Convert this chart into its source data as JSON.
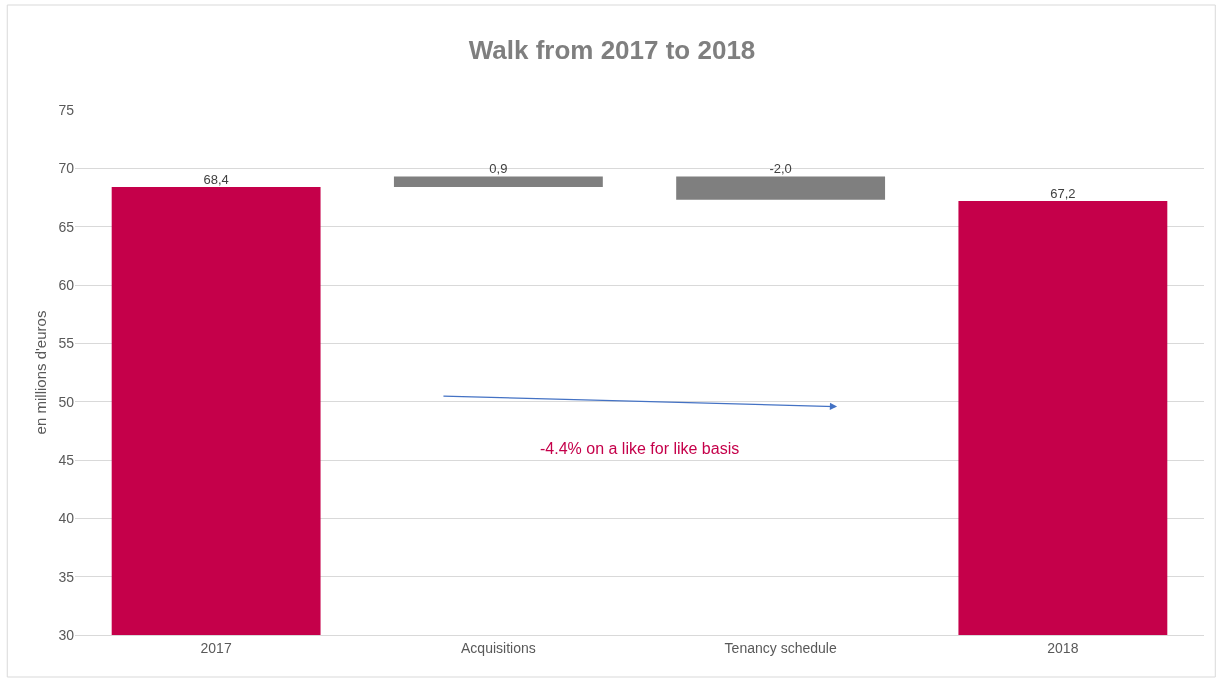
{
  "chart_data": {
    "type": "bar",
    "title": "Walk from 2017 to 2018",
    "ylabel": "en millions d'euros",
    "categories": [
      "2017",
      "Acquisitions",
      "Tenancy schedule",
      "2018"
    ],
    "values": [
      68.4,
      0.9,
      -2.0,
      67.2
    ],
    "base": [
      null,
      68.4,
      69.3,
      null
    ],
    "colors": [
      "#c5004a",
      "#7f7f7f",
      "#7f7f7f",
      "#c5004a"
    ],
    "value_labels": [
      "68,4",
      "0,9",
      "-2,0",
      "67,2"
    ],
    "annotations": [
      "-4.4% on a like for like basis"
    ],
    "ylim": [
      30,
      75
    ],
    "yticks": [
      30,
      35,
      40,
      45,
      50,
      55,
      60,
      65,
      70,
      75
    ],
    "grid": "y"
  }
}
